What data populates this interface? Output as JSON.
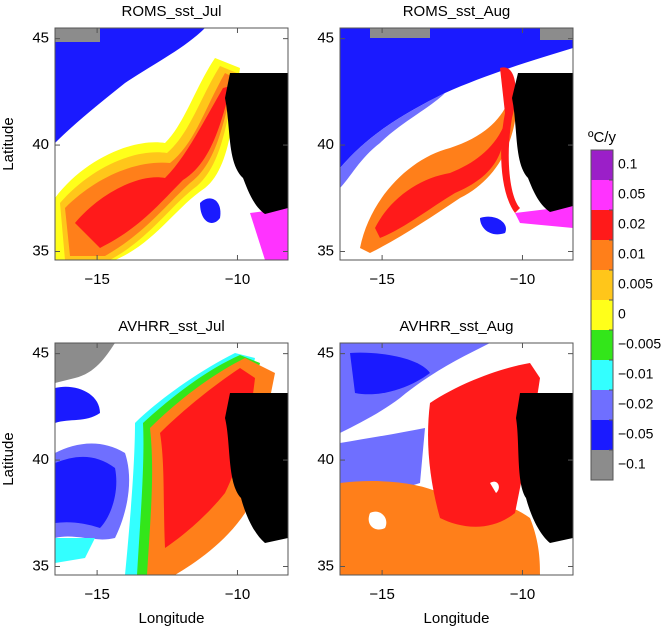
{
  "panels": [
    {
      "title": "ROMS_sst_Jul",
      "ylabel": "Latitude",
      "xlim": [
        -16.5,
        -8.2
      ],
      "ylim": [
        34.6,
        45.5
      ],
      "xticks": [
        {
          "value": -15,
          "label": "−15"
        },
        {
          "value": -10,
          "label": "−10"
        }
      ],
      "yticks": [
        35,
        40,
        45
      ]
    },
    {
      "title": "ROMS_sst_Aug",
      "xlim": [
        -16.5,
        -8.2
      ],
      "ylim": [
        34.6,
        45.5
      ],
      "xticks": [
        {
          "value": -15,
          "label": "−15"
        },
        {
          "value": -10,
          "label": "−10"
        }
      ],
      "yticks": [
        35,
        40,
        45
      ]
    },
    {
      "title": "AVHRR_sst_Jul",
      "ylabel": "Latitude",
      "xlabel": "Longitude",
      "xlim": [
        -16.5,
        -8.2
      ],
      "ylim": [
        34.6,
        45.5
      ],
      "xticks": [
        {
          "value": -15,
          "label": "−15"
        },
        {
          "value": -10,
          "label": "−10"
        }
      ],
      "yticks": [
        35,
        40,
        45
      ]
    },
    {
      "title": "AVHRR_sst_Aug",
      "xlabel": "Longitude",
      "xlim": [
        -16.5,
        -8.2
      ],
      "ylim": [
        34.6,
        45.5
      ],
      "xticks": [
        {
          "value": -15,
          "label": "−15"
        },
        {
          "value": -10,
          "label": "−10"
        }
      ],
      "yticks": [
        35,
        40,
        45
      ]
    }
  ],
  "colorbar": {
    "title": "ºC/y",
    "levels": [
      0.1,
      0.05,
      0.02,
      0.01,
      0.005,
      0,
      {
        "value": -0.005,
        "label": "−0.005"
      },
      {
        "value": -0.01,
        "label": "−0.01"
      },
      {
        "value": -0.02,
        "label": "−0.02"
      },
      {
        "value": -0.05,
        "label": "−0.05"
      },
      {
        "value": -0.1,
        "label": "−0.1"
      }
    ],
    "colors": [
      "#9b1fc8",
      "#ff33ff",
      "#ff1a1a",
      "#ff7f1a",
      "#ffc61a",
      "#ffff1a",
      "#33e61a",
      "#33ffff",
      "#6f6fff",
      "#1a1aff",
      "#8c8c8c"
    ]
  }
}
